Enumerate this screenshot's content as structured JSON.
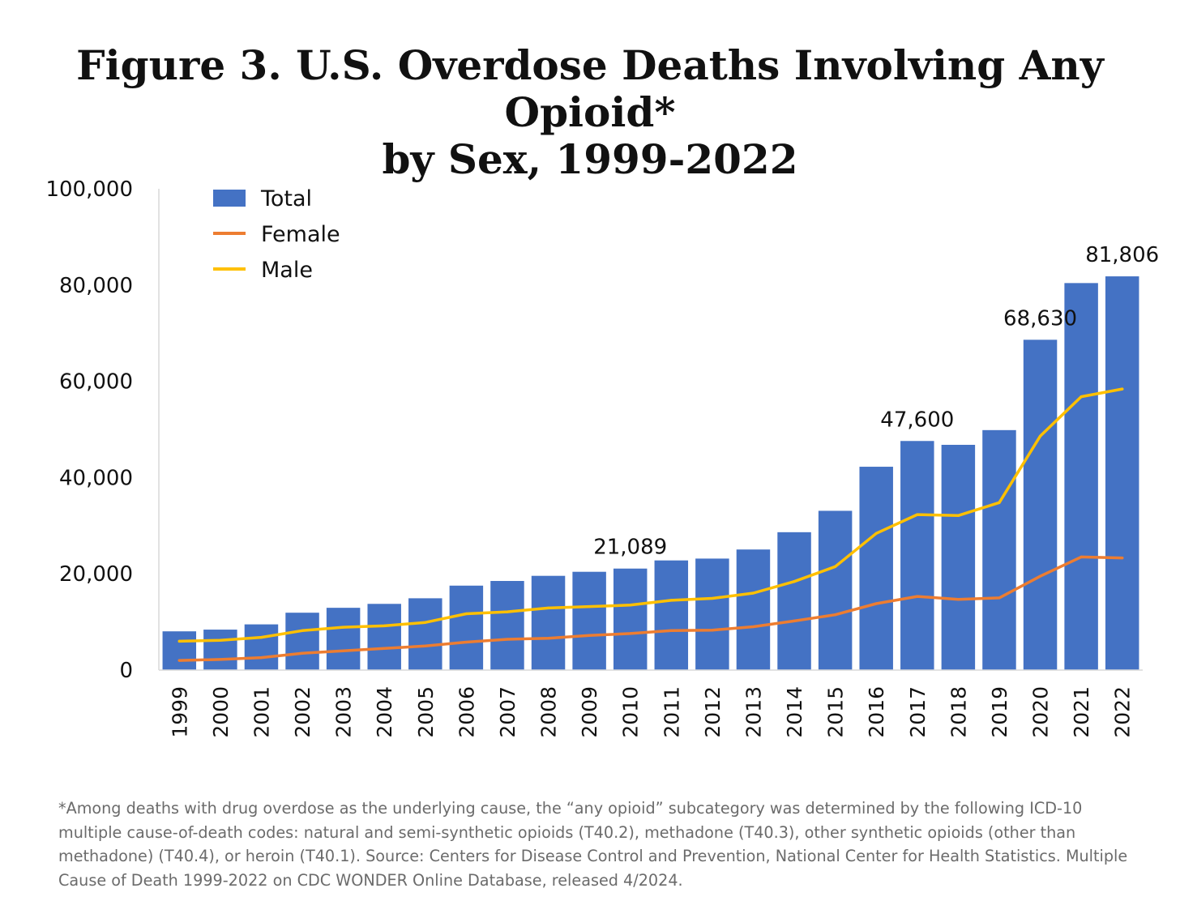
{
  "title_lines": [
    "Figure 3. U.S. Overdose Deaths Involving Any Opioid*",
    "by Sex, 1999-2022"
  ],
  "footnote": "*Among deaths with drug overdose as the underlying cause, the “any opioid” subcategory was determined by the following ICD-10 multiple cause-of-death codes: natural and semi-synthetic opioids (T40.2), methadone (T40.3), other synthetic opioids (other than methadone) (T40.4), or heroin (T40.1). Source: Centers for Disease Control and Prevention, National Center for Health Statistics. Multiple Cause of Death 1999-2022 on CDC WONDER Online Database, released 4/2024.",
  "colors": {
    "total": "#4472C4",
    "female": "#ED7D31",
    "male": "#FFC000",
    "axis": "#d9d9d9"
  },
  "chart_data": {
    "type": "bar",
    "title": "Figure 3. U.S. Overdose Deaths Involving Any Opioid* by Sex, 1999-2022",
    "xlabel": "",
    "ylabel": "",
    "ylim": [
      0,
      100000
    ],
    "yticks": [
      0,
      20000,
      40000,
      60000,
      80000,
      100000
    ],
    "ytick_labels": [
      "0",
      "20,000",
      "40,000",
      "60,000",
      "80,000",
      "100,000"
    ],
    "categories": [
      "1999",
      "2000",
      "2001",
      "2002",
      "2003",
      "2004",
      "2005",
      "2006",
      "2007",
      "2008",
      "2009",
      "2010",
      "2011",
      "2012",
      "2013",
      "2014",
      "2015",
      "2016",
      "2017",
      "2018",
      "2019",
      "2020",
      "2021",
      "2022"
    ],
    "legend": {
      "position": "top-left",
      "entries": [
        "Total",
        "Female",
        "Male"
      ]
    },
    "series": [
      {
        "name": "Total",
        "kind": "bar",
        "values": [
          8050,
          8407,
          9496,
          11920,
          12940,
          13756,
          14918,
          17545,
          18516,
          19582,
          20422,
          21089,
          22784,
          23166,
          25052,
          28647,
          33091,
          42249,
          47600,
          46802,
          49860,
          68630,
          80411,
          81806
        ]
      },
      {
        "name": "Female",
        "kind": "line",
        "values": [
          2000,
          2200,
          2600,
          3500,
          4000,
          4500,
          5000,
          5800,
          6400,
          6600,
          7200,
          7600,
          8200,
          8300,
          9000,
          10200,
          11500,
          13800,
          15300,
          14700,
          15000,
          19500,
          23500,
          23300
        ]
      },
      {
        "name": "Male",
        "kind": "line",
        "values": [
          6000,
          6200,
          6800,
          8200,
          8900,
          9200,
          9900,
          11700,
          12100,
          12900,
          13200,
          13500,
          14500,
          14900,
          16000,
          18400,
          21500,
          28400,
          32300,
          32100,
          34800,
          48600,
          56800,
          58400
        ]
      }
    ],
    "annotations": [
      {
        "category": "2010",
        "label": "21,089"
      },
      {
        "category": "2017",
        "label": "47,600"
      },
      {
        "category": "2020",
        "label": "68,630"
      },
      {
        "category": "2022",
        "label": "81,806"
      }
    ]
  }
}
